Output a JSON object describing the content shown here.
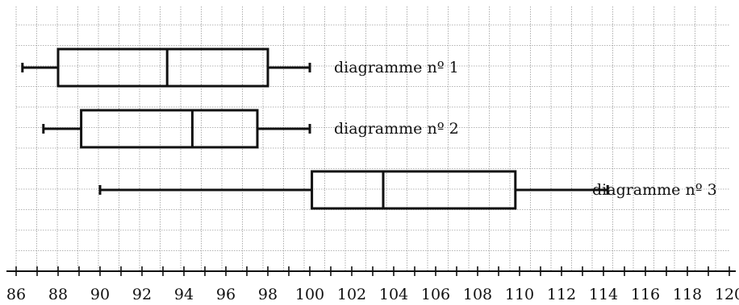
{
  "chart_data": {
    "type": "boxplot",
    "title": "",
    "xlabel": "",
    "ylabel": "",
    "xlim": [
      86,
      120
    ],
    "x_ticks": [
      86,
      88,
      90,
      92,
      94,
      96,
      98,
      100,
      102,
      104,
      106,
      108,
      110,
      112,
      114,
      116,
      118,
      120
    ],
    "grid": true,
    "series": [
      {
        "label": "diagramme nº 1",
        "min": 86.3,
        "q1": 88.0,
        "median": 93.2,
        "q3": 98.0,
        "max": 100.0
      },
      {
        "label": "diagramme nº 2",
        "min": 87.3,
        "q1": 89.1,
        "median": 94.4,
        "q3": 97.5,
        "max": 100.0
      },
      {
        "label": "diagramme nº 3",
        "min": 90.0,
        "q1": 100.1,
        "median": 103.5,
        "q3": 109.8,
        "max": 114.2
      }
    ]
  }
}
